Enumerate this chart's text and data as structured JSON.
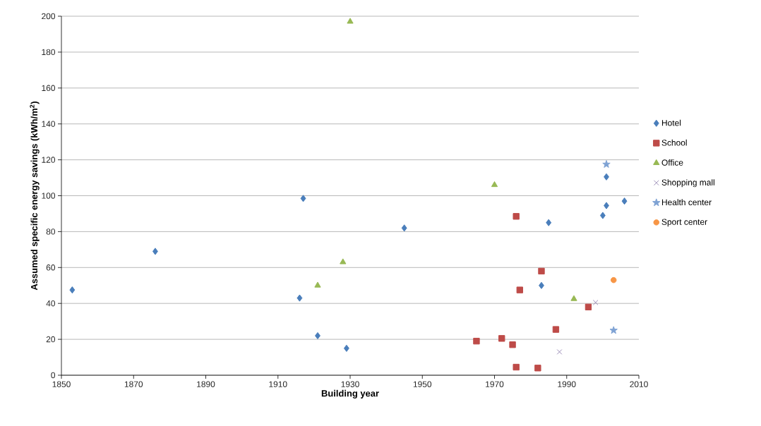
{
  "chart_data": {
    "type": "scatter",
    "xlabel": "Building year",
    "ylabel": "Assumed specific energy savings  (kWh/m$^{2}$)",
    "xlim": [
      1850,
      2010
    ],
    "xticks": [
      1850,
      1870,
      1890,
      1910,
      1930,
      1950,
      1970,
      1990,
      2010
    ],
    "ylim": [
      0,
      200
    ],
    "yticks": [
      0,
      20,
      40,
      60,
      80,
      100,
      120,
      140,
      160,
      180,
      200
    ],
    "grid": "y",
    "legend": "right",
    "series": [
      {
        "name": "Hotel",
        "color": "#4a7ebb",
        "marker": "diamond",
        "x": [
          1853,
          1876,
          1916,
          1917,
          1921,
          1929,
          1945,
          1983,
          1985,
          2000,
          2001,
          2001,
          2006
        ],
        "values": [
          47.5,
          69,
          43,
          98.5,
          22,
          15,
          82,
          50,
          85,
          89,
          94.5,
          110.5,
          97
        ]
      },
      {
        "name": "School",
        "color": "#be4b48",
        "marker": "square",
        "x": [
          1965,
          1972,
          1975,
          1976,
          1976,
          1977,
          1982,
          1983,
          1987,
          1996
        ],
        "values": [
          19,
          20.5,
          17,
          4.5,
          88.5,
          47.5,
          4,
          58,
          25.5,
          38
        ]
      },
      {
        "name": "Office",
        "color": "#98b954",
        "marker": "triangle",
        "x": [
          1921,
          1928,
          1930,
          1970,
          1992
        ],
        "values": [
          50,
          63,
          197,
          106,
          42.5
        ]
      },
      {
        "name": "Shopping mall",
        "color": "#9d8fb8",
        "marker": "cross",
        "x": [
          1988,
          1998
        ],
        "values": [
          13,
          40.5
        ]
      },
      {
        "name": "Health center",
        "color": "#7fa3d4",
        "marker": "star",
        "x": [
          2001,
          2003
        ],
        "values": [
          117.5,
          25
        ]
      },
      {
        "name": "Sport center",
        "color": "#f79646",
        "marker": "circle",
        "x": [
          2003
        ],
        "values": [
          53
        ]
      }
    ]
  }
}
